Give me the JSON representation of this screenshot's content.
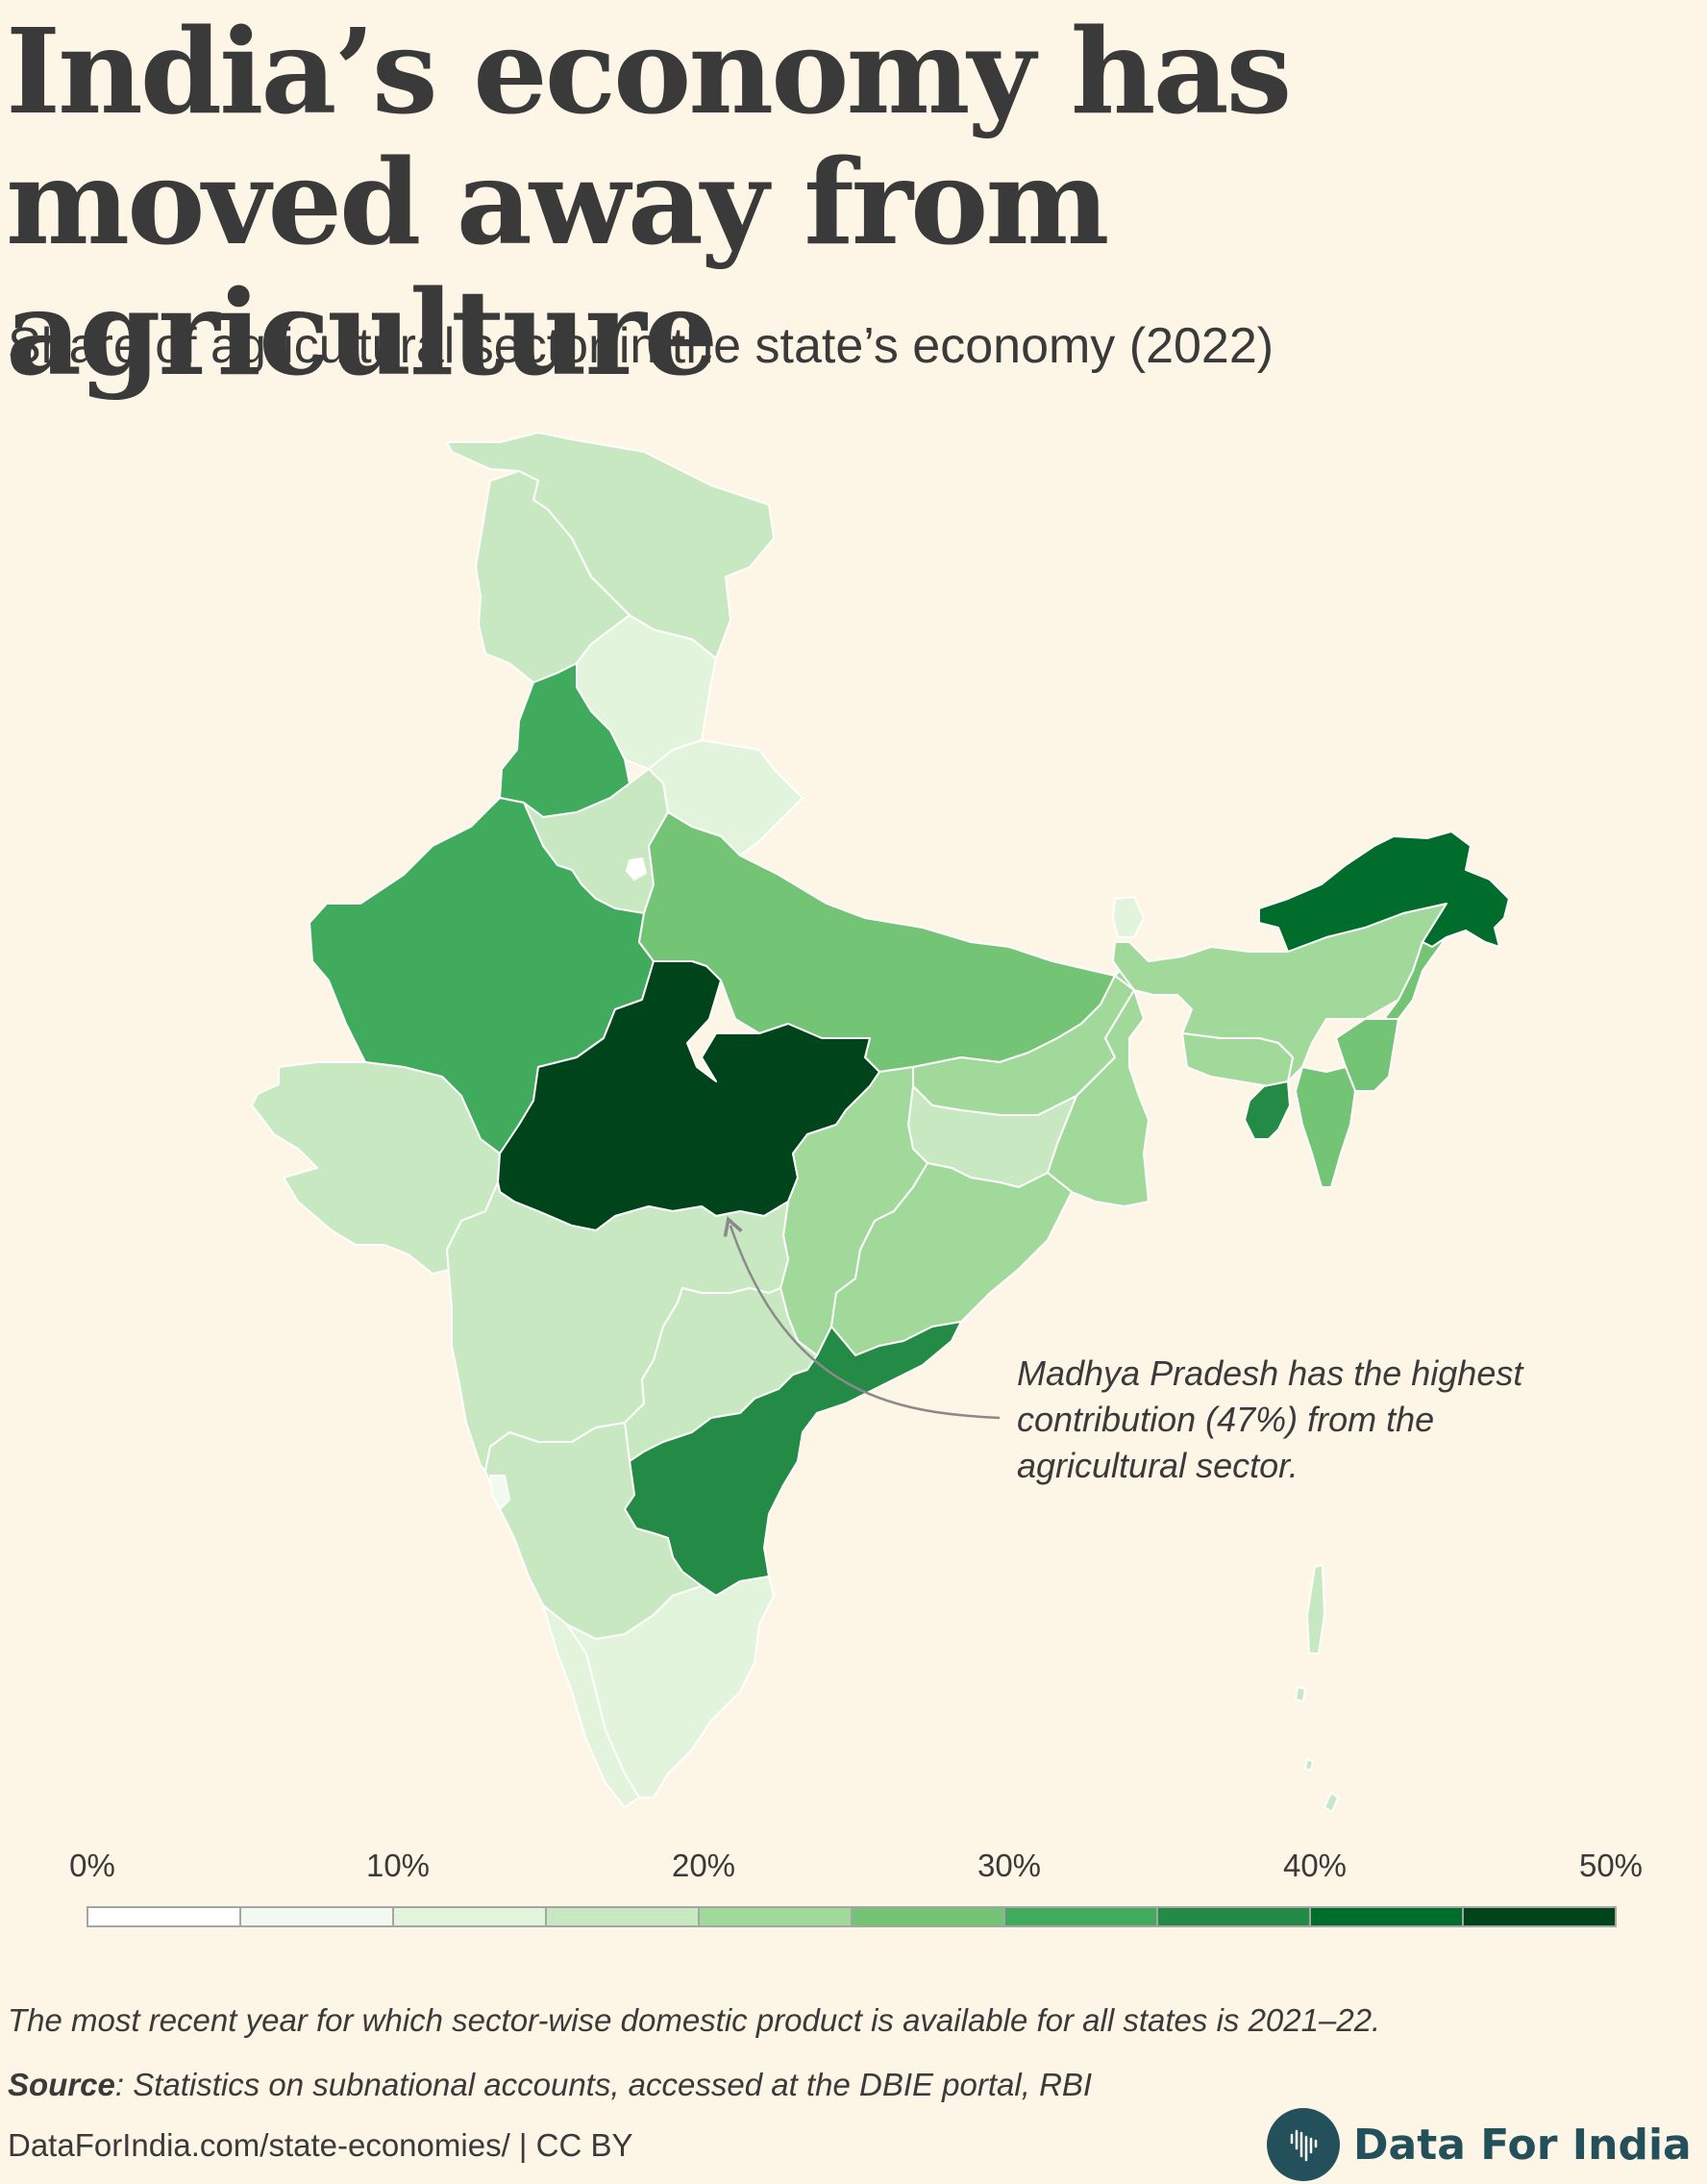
{
  "header": {
    "title": "India’s economy has moved away from agriculture",
    "subtitle": "Share of agricultural sector in the state’s economy (2022)"
  },
  "annotation": "Madhya Pradesh has the highest contribution (47%) from the agricultural sector.",
  "chart_data": {
    "type": "choropleth",
    "metric": "Share of agricultural sector in the state’s economy",
    "year": "2022",
    "unit": "%",
    "highlight": {
      "state": "Madhya Pradesh",
      "value": 47
    },
    "regions": [
      {
        "id": "jammu-kashmir",
        "value_bin": [
          15,
          20
        ]
      },
      {
        "id": "ladakh",
        "value_bin": [
          15,
          20
        ]
      },
      {
        "id": "himachal-pradesh",
        "value_bin": [
          10,
          15
        ]
      },
      {
        "id": "punjab",
        "value_bin": [
          30,
          35
        ]
      },
      {
        "id": "haryana",
        "value_bin": [
          15,
          20
        ]
      },
      {
        "id": "uttarakhand",
        "value_bin": [
          10,
          15
        ]
      },
      {
        "id": "rajasthan",
        "value_bin": [
          30,
          35
        ]
      },
      {
        "id": "uttar-pradesh",
        "value_bin": [
          25,
          30
        ]
      },
      {
        "id": "gujarat",
        "value_bin": [
          15,
          20
        ]
      },
      {
        "id": "madhya-pradesh",
        "value_bin": [
          45,
          50
        ]
      },
      {
        "id": "bihar",
        "value_bin": [
          20,
          25
        ]
      },
      {
        "id": "jharkhand",
        "value_bin": [
          15,
          20
        ]
      },
      {
        "id": "west-bengal",
        "value_bin": [
          20,
          25
        ]
      },
      {
        "id": "chhattisgarh",
        "value_bin": [
          20,
          25
        ]
      },
      {
        "id": "odisha",
        "value_bin": [
          20,
          25
        ]
      },
      {
        "id": "maharashtra",
        "value_bin": [
          15,
          20
        ]
      },
      {
        "id": "telangana",
        "value_bin": [
          15,
          20
        ]
      },
      {
        "id": "andhra-pradesh",
        "value_bin": [
          35,
          40
        ]
      },
      {
        "id": "karnataka",
        "value_bin": [
          15,
          20
        ]
      },
      {
        "id": "goa",
        "value_bin": [
          5,
          10
        ]
      },
      {
        "id": "kerala",
        "value_bin": [
          10,
          15
        ]
      },
      {
        "id": "tamil-nadu",
        "value_bin": [
          10,
          15
        ]
      },
      {
        "id": "sikkim",
        "value_bin": [
          10,
          15
        ]
      },
      {
        "id": "assam",
        "value_bin": [
          20,
          25
        ]
      },
      {
        "id": "arunachal-pradesh",
        "value_bin": [
          40,
          45
        ]
      },
      {
        "id": "nagaland",
        "value_bin": [
          25,
          30
        ]
      },
      {
        "id": "manipur",
        "value_bin": [
          25,
          30
        ]
      },
      {
        "id": "meghalaya",
        "value_bin": [
          20,
          25
        ]
      },
      {
        "id": "mizoram",
        "value_bin": [
          25,
          30
        ]
      },
      {
        "id": "tripura",
        "value_bin": [
          35,
          40
        ]
      },
      {
        "id": "andaman-nicobar",
        "value_bin": [
          15,
          20
        ]
      },
      {
        "id": "delhi",
        "value_bin": [
          0,
          5
        ]
      }
    ]
  },
  "legend": {
    "ticks": [
      "0%",
      "10%",
      "20%",
      "30%",
      "40%",
      "50%"
    ],
    "colors": [
      "#ffffff",
      "#f2f9ee",
      "#e3f4dc",
      "#c8e8c1",
      "#a1d99b",
      "#74c476",
      "#41ab5d",
      "#238b45",
      "#006d2c",
      "#00441b"
    ]
  },
  "footer": {
    "note": "The most recent year for which sector-wise domestic product is available for all states is 2021–22.",
    "source_label": "Source",
    "source_text": ": Statistics on subnational accounts, accessed at the DBIE portal, RBI",
    "credit": "DataForIndia.com/state-economies/  |  CC BY",
    "brand": "Data For India"
  }
}
